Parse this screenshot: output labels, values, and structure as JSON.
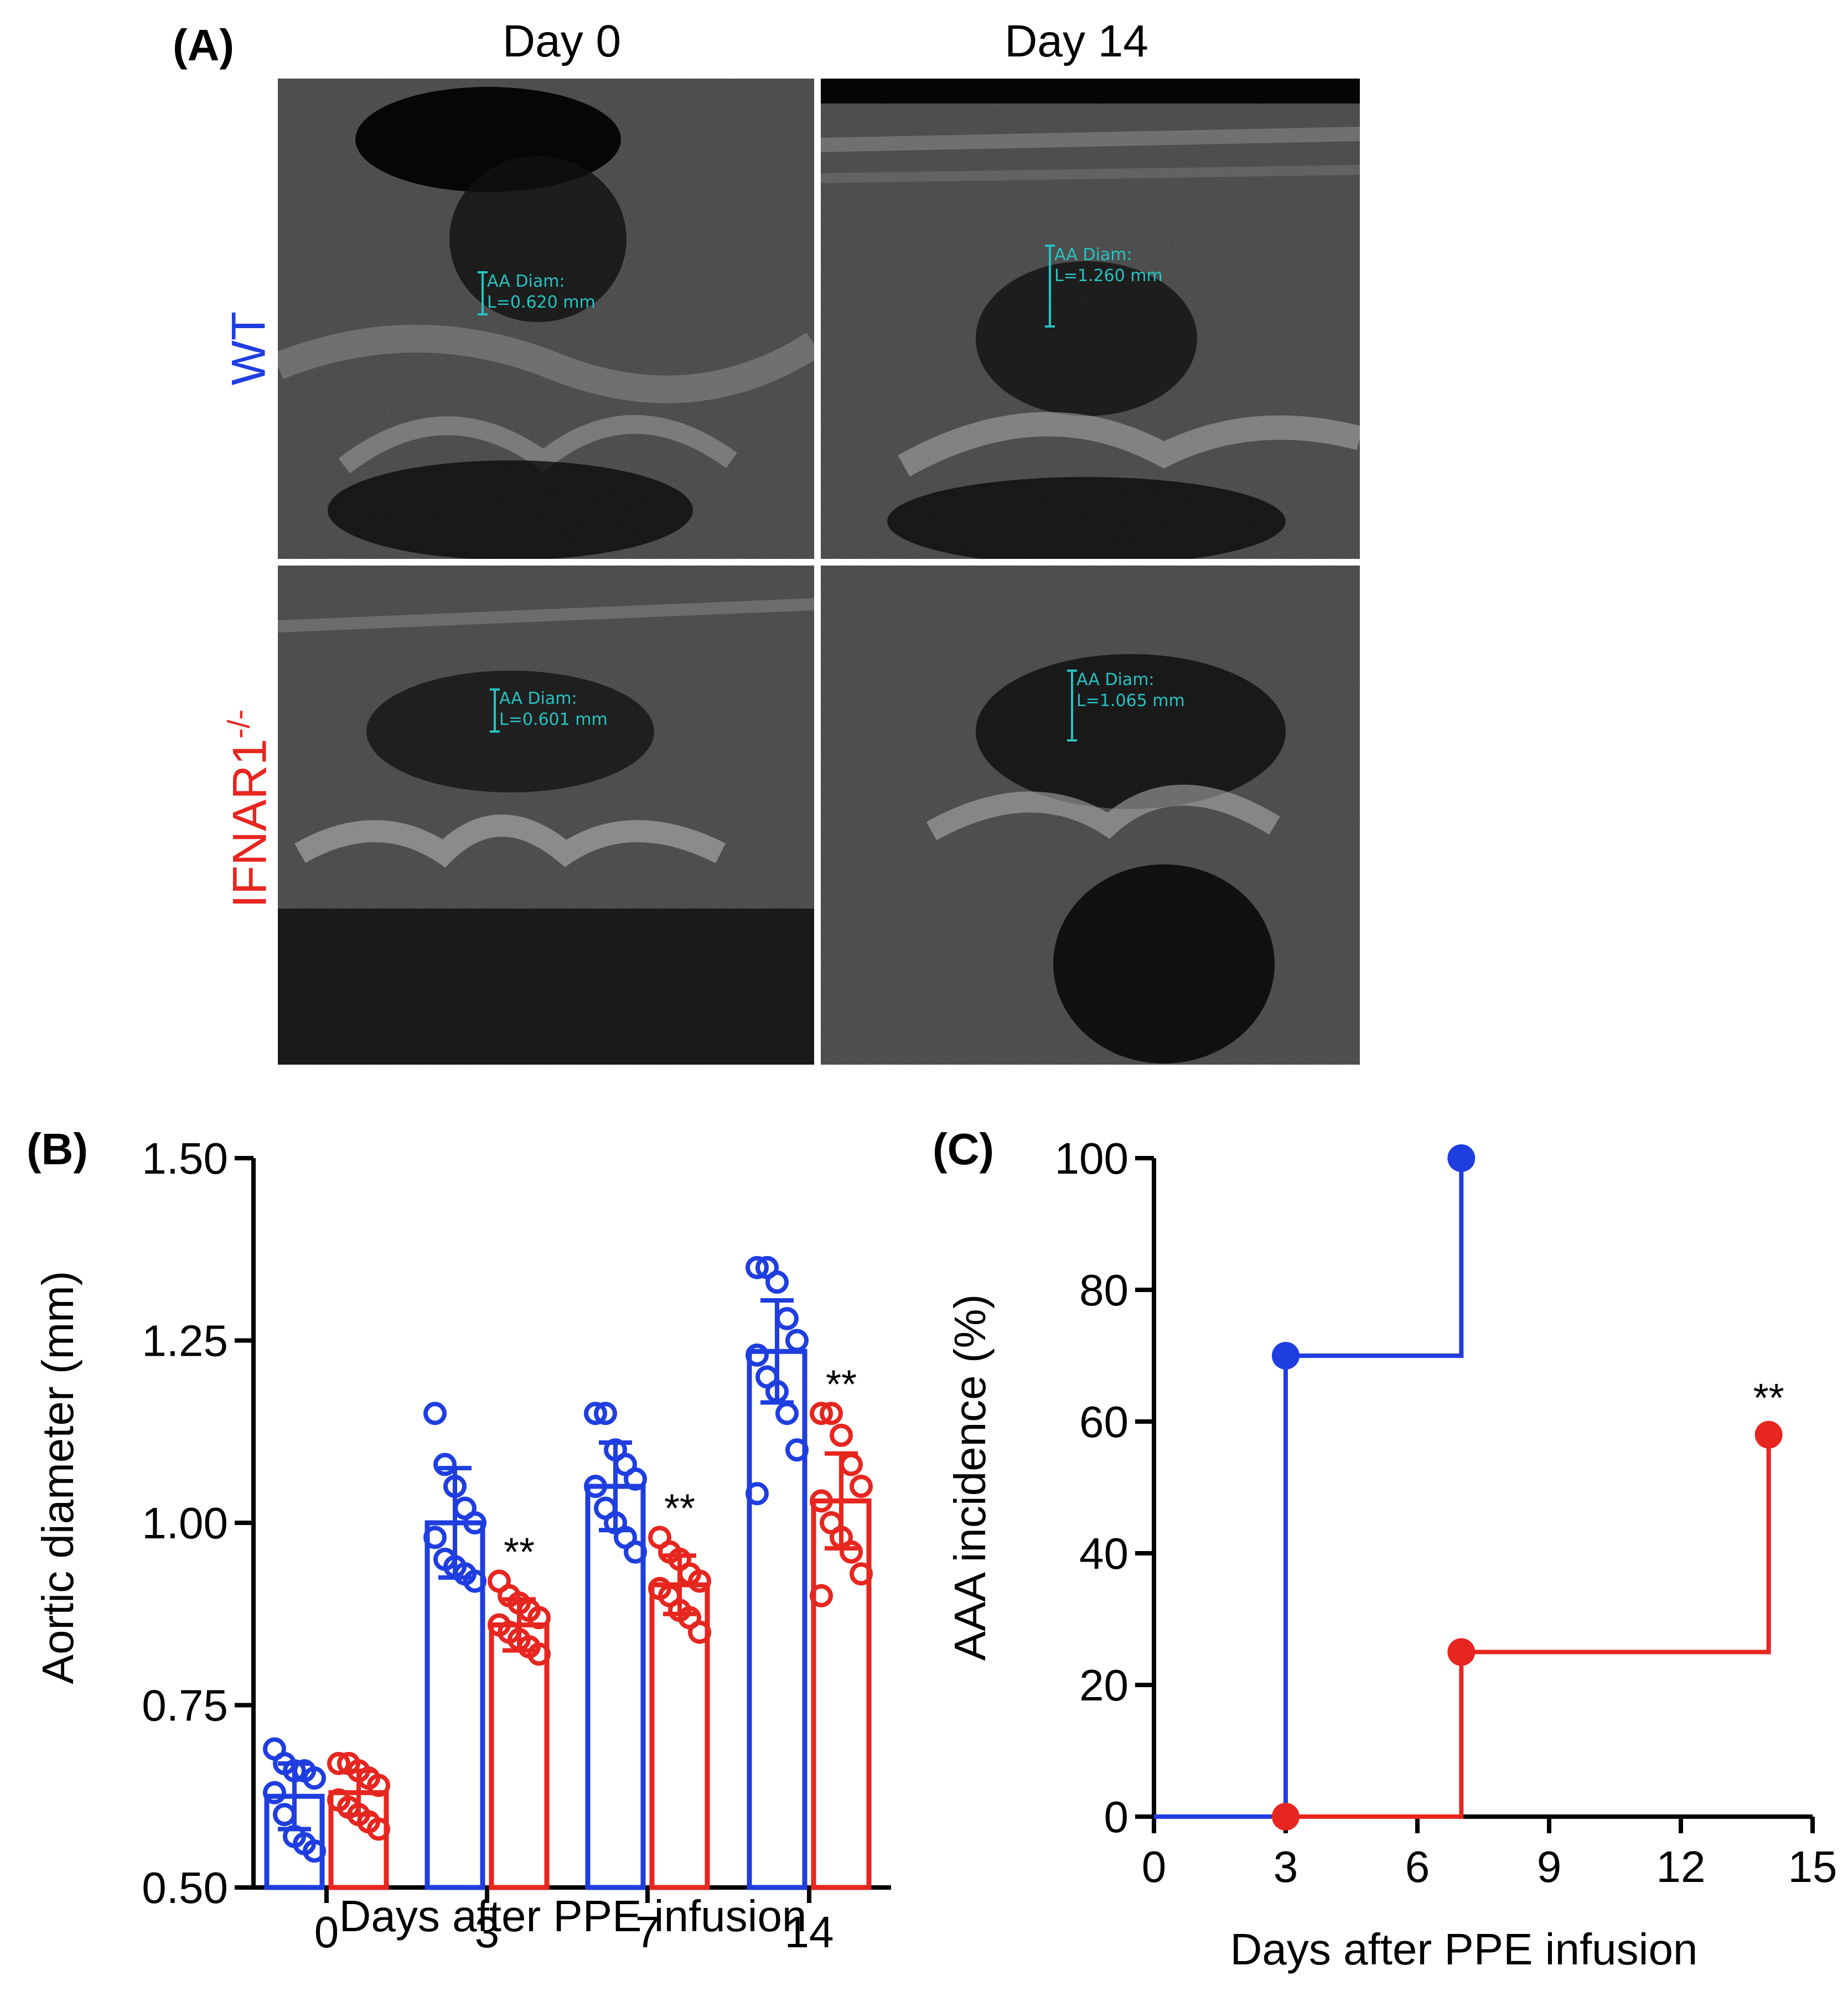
{
  "panel_a": {
    "letter": "(A)",
    "col_titles": [
      "Day 0",
      "Day 14"
    ],
    "row_labels": {
      "wt": "WT",
      "ko_base": "IFNAR1",
      "ko_sup": "-/-"
    },
    "measurements": [
      {
        "title": "AA Diam:",
        "value": "L=0.620 mm"
      },
      {
        "title": "AA Diam:",
        "value": "L=1.260 mm"
      },
      {
        "title": "AA Diam:",
        "value": "L=0.601 mm"
      },
      {
        "title": "AA Diam:",
        "value": "L=1.065 mm"
      }
    ]
  },
  "colors": {
    "wt": "#1f3ee0",
    "ko": "#e6261f",
    "axis": "#000000",
    "measure": "#27c3c3"
  },
  "chart_data": [
    {
      "type": "bar",
      "panel": "(B)",
      "xlabel": "Days after PPE infusion",
      "ylabel": "Aortic diameter (mm)",
      "categories": [
        "0",
        "3",
        "7",
        "14"
      ],
      "ylim": [
        0.5,
        1.5
      ],
      "yticks": [
        "0.50",
        "0.75",
        "1.00",
        "1.25",
        "1.50"
      ],
      "grid": false,
      "series": [
        {
          "group": "wt",
          "values": [
            0.625,
            1.0,
            1.05,
            1.235
          ],
          "sd": [
            0.045,
            0.075,
            0.06,
            0.07
          ],
          "points": [
            [
              0.69,
              0.67,
              0.66,
              0.66,
              0.65,
              0.63,
              0.6,
              0.57,
              0.56,
              0.55
            ],
            [
              1.15,
              1.08,
              1.05,
              1.02,
              1.0,
              0.98,
              0.95,
              0.94,
              0.93,
              0.92
            ],
            [
              1.15,
              1.15,
              1.1,
              1.08,
              1.06,
              1.05,
              1.02,
              1.0,
              0.98,
              0.96
            ],
            [
              1.35,
              1.35,
              1.33,
              1.28,
              1.25,
              1.23,
              1.2,
              1.18,
              1.15,
              1.1,
              1.04
            ]
          ]
        },
        {
          "group": "ko",
          "values": [
            0.63,
            0.86,
            0.915,
            1.03
          ],
          "sd": [
            0.03,
            0.035,
            0.04,
            0.065
          ],
          "points": [
            [
              0.67,
              0.67,
              0.66,
              0.65,
              0.64,
              0.62,
              0.61,
              0.6,
              0.59,
              0.58
            ],
            [
              0.92,
              0.9,
              0.89,
              0.88,
              0.87,
              0.86,
              0.85,
              0.84,
              0.83,
              0.82
            ],
            [
              0.98,
              0.96,
              0.95,
              0.93,
              0.92,
              0.91,
              0.9,
              0.88,
              0.87,
              0.85
            ],
            [
              1.15,
              1.15,
              1.12,
              1.08,
              1.05,
              1.03,
              1.0,
              0.98,
              0.96,
              0.93,
              0.9
            ]
          ]
        }
      ],
      "annotations": [
        {
          "category": "3",
          "text": "**"
        },
        {
          "category": "7",
          "text": "**"
        },
        {
          "category": "14",
          "text": "**"
        }
      ]
    },
    {
      "type": "line",
      "step": true,
      "panel": "(C)",
      "xlabel": "Days after PPE infusion",
      "ylabel": "AAA incidence (%)",
      "xlim": [
        0,
        15
      ],
      "ylim": [
        0,
        100
      ],
      "xticks": [
        0,
        3,
        6,
        9,
        12,
        15
      ],
      "yticks": [
        0,
        20,
        40,
        60,
        80,
        100
      ],
      "grid": false,
      "series": [
        {
          "group": "wt",
          "x": [
            0,
            3,
            7
          ],
          "y": [
            0,
            70,
            100
          ],
          "markers": [
            3,
            7
          ]
        },
        {
          "group": "ko",
          "x": [
            3,
            7,
            14
          ],
          "y": [
            0,
            25,
            58
          ],
          "markers": [
            3,
            7,
            14
          ]
        }
      ],
      "annotations": [
        {
          "x": 14,
          "y": 58,
          "text": "**"
        }
      ]
    }
  ]
}
